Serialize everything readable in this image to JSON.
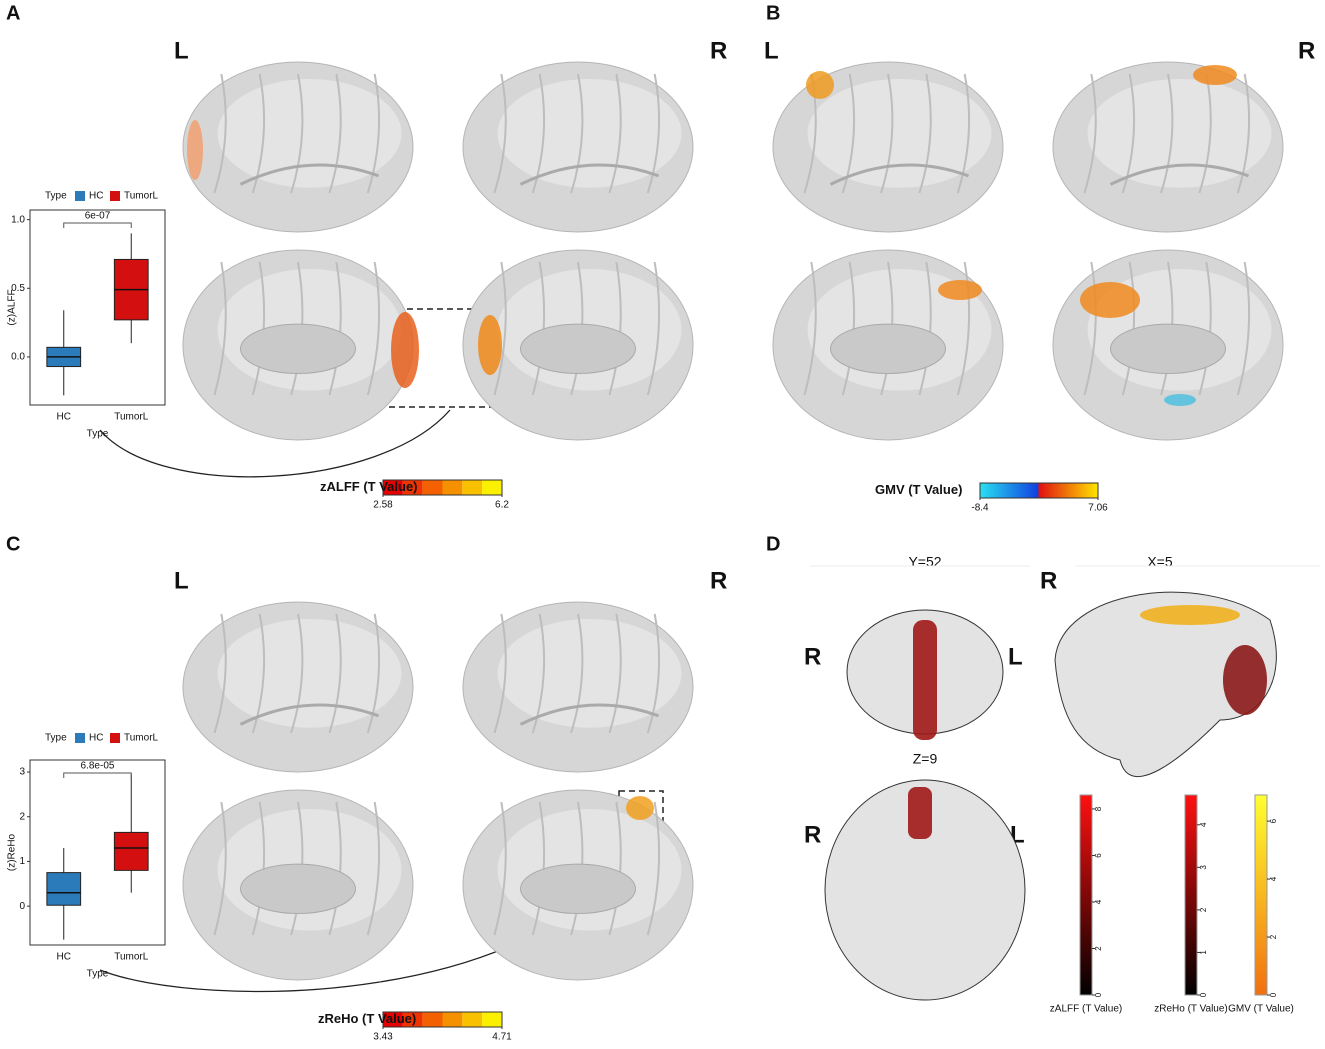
{
  "panels": {
    "a": "A",
    "b": "B",
    "c": "C",
    "d": "D"
  },
  "hemisphere_labels": {
    "left": "L",
    "right": "R"
  },
  "slices": {
    "coronal": "Y=52",
    "sagittal": "X=5",
    "axial": "Z=9"
  },
  "chart_data": [
    {
      "type": "box",
      "legend_title": "Type",
      "x_label": "Type",
      "y_label": "(z)ALFF",
      "annotation": "6e-07",
      "categories": [
        "HC",
        "TumorL"
      ],
      "series": [
        {
          "name": "HC",
          "color": "#2b7bba",
          "values": [
            -0.28,
            -0.07,
            0.0,
            0.07,
            0.34
          ]
        },
        {
          "name": "TumorL",
          "color": "#d40f0f",
          "values": [
            0.1,
            0.27,
            0.49,
            0.71,
            0.9
          ]
        }
      ],
      "ylim": [
        -0.35,
        1.07
      ],
      "yticks": [
        {
          "value": 0,
          "label": "0.0"
        },
        {
          "value": 0.5,
          "label": "0.5"
        },
        {
          "value": 1,
          "label": "1.0"
        }
      ]
    },
    {
      "type": "box",
      "legend_title": "Type",
      "x_label": "Type",
      "y_label": "(z)ReHo",
      "annotation": "6.8e-05",
      "categories": [
        "HC",
        "TumorL"
      ],
      "series": [
        {
          "name": "HC",
          "color": "#2b7bba",
          "values": [
            -0.75,
            0.02,
            0.3,
            0.75,
            1.3
          ]
        },
        {
          "name": "TumorL",
          "color": "#d40f0f",
          "values": [
            0.3,
            0.8,
            1.3,
            1.65,
            2.95
          ]
        }
      ],
      "ylim": [
        -0.87,
        3.27
      ],
      "yticks": [
        0,
        1,
        2,
        3
      ]
    }
  ],
  "colorbars": [
    {
      "title": "zALFF (T Value)",
      "lim": [
        2.58,
        6.2
      ],
      "ticks": [
        2.58,
        6.2
      ]
    },
    {
      "title": "GMV (T Value)",
      "lim": [
        -8.4,
        7.06
      ],
      "ticks": [
        -8.4,
        7.06
      ]
    },
    {
      "title": "zReHo (T Value)",
      "lim": [
        3.43,
        4.71
      ],
      "ticks": [
        3.43,
        4.71
      ]
    },
    {
      "title": "zALFF (T Value)",
      "lim": [
        0,
        8.6
      ],
      "ticks": [
        0,
        2,
        4,
        6,
        8
      ]
    },
    {
      "title": "zReHo (T Value)",
      "lim": [
        0,
        4.7
      ],
      "ticks": [
        0,
        1,
        2,
        3,
        4
      ]
    },
    {
      "title": "GMV (T Value)",
      "lim": [
        0,
        6.9
      ],
      "ticks": [
        0,
        2,
        4,
        6
      ]
    }
  ]
}
